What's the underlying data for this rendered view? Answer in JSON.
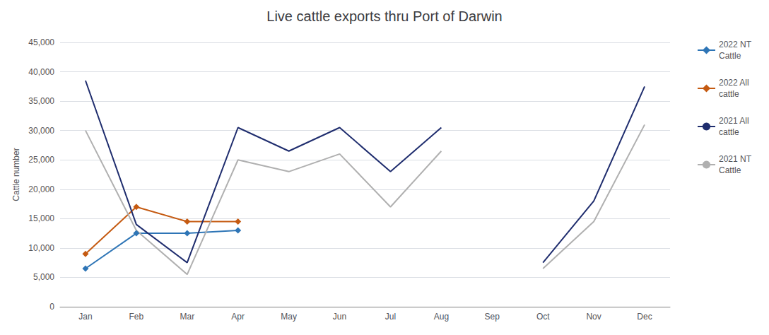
{
  "chart_data": {
    "type": "line",
    "title": "Live cattle exports thru Port of Darwin",
    "ylabel": "Cattle number",
    "categories": [
      "Jan",
      "Feb",
      "Mar",
      "Apr",
      "May",
      "Jun",
      "Jul",
      "Aug",
      "Sep",
      "Oct",
      "Nov",
      "Dec"
    ],
    "series": [
      {
        "name": "2022 NT\nCattle",
        "color": "#2e75b6",
        "marker": "diamond",
        "values": [
          6500,
          12500,
          12500,
          13000,
          null,
          null,
          null,
          null,
          null,
          null,
          null,
          null
        ]
      },
      {
        "name": "2022 All\ncattle",
        "color": "#c55a11",
        "marker": "diamond",
        "values": [
          9000,
          17000,
          14500,
          14500,
          null,
          null,
          null,
          null,
          null,
          null,
          null,
          null
        ]
      },
      {
        "name": "2021 All\ncattle",
        "color": "#1f2d6e",
        "marker": "none",
        "values": [
          38500,
          14000,
          7500,
          30500,
          26500,
          30500,
          23000,
          30500,
          null,
          7500,
          18000,
          37500
        ]
      },
      {
        "name": "2021 NT\nCattle",
        "color": "#b0b0b0",
        "marker": "none",
        "values": [
          30000,
          13000,
          5500,
          25000,
          23000,
          26000,
          17000,
          26500,
          null,
          6500,
          14500,
          31000
        ]
      }
    ],
    "ylim": [
      0,
      45000
    ],
    "yticks": [
      0,
      {
        "value": 5000,
        "label": "5,000"
      },
      {
        "value": 10000,
        "label": "10,000"
      },
      {
        "value": 15000,
        "label": "15,000"
      },
      {
        "value": 20000,
        "label": "20,000"
      },
      {
        "value": 25000,
        "label": "25,000"
      },
      {
        "value": 30000,
        "label": "30,000"
      },
      {
        "value": 35000,
        "label": "35,000"
      },
      {
        "value": 40000,
        "label": "40,000"
      },
      {
        "value": 45000,
        "label": "45,000"
      }
    ],
    "grid": true,
    "legend": "right"
  }
}
